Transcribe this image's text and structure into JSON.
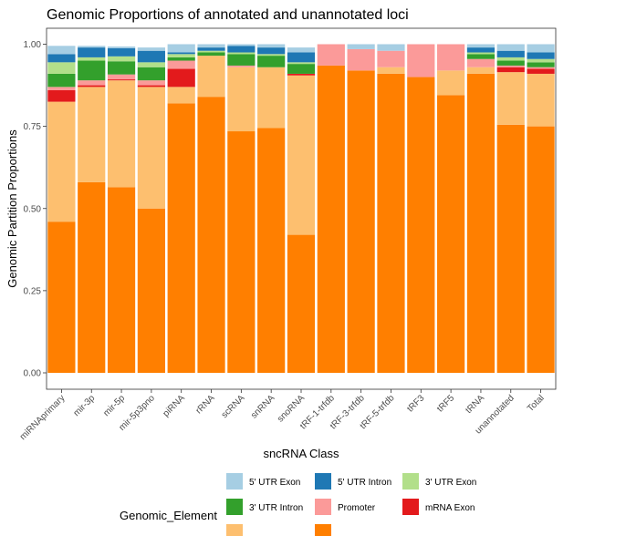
{
  "chart_data": {
    "type": "bar",
    "stacked": true,
    "title": "Genomic Proportions of annotated and unannotated loci",
    "xlabel": "sncRNA Class",
    "ylabel": "Genomic Partition Proportions",
    "ylim": [
      0,
      1
    ],
    "yticks": [
      "0.00",
      "0.25",
      "0.50",
      "0.75",
      "1.00"
    ],
    "grid": false,
    "legend_position": "bottom",
    "legend_title": "Genomic_Element",
    "categories": [
      "miRNAprimary",
      "mir-3p",
      "mir-5p",
      "mir-5p3pno",
      "piRNA",
      "rRNA",
      "scRNA",
      "snRNA",
      "snoRNA",
      "tRF-1-trfdb",
      "tRF-3-trfdb",
      "tRF-5-trfdb",
      "tRF3",
      "tRF5",
      "tRNA",
      "unannotated",
      "Total"
    ],
    "series": [
      {
        "name": "",
        "color": "#FF7F00",
        "values": [
          0.46,
          0.58,
          0.565,
          0.5,
          0.82,
          0.84,
          0.735,
          0.745,
          0.42,
          0.935,
          0.92,
          0.91,
          0.9,
          0.845,
          0.91,
          0.755,
          0.75
        ]
      },
      {
        "name": "",
        "color": "#FDBF6F",
        "values": [
          0.365,
          0.29,
          0.325,
          0.37,
          0.05,
          0.125,
          0.195,
          0.185,
          0.485,
          0.0,
          0.0,
          0.02,
          0.0,
          0.075,
          0.02,
          0.16,
          0.16
        ]
      },
      {
        "name": "mRNA Exon",
        "color": "#E31A1C",
        "values": [
          0.035,
          0.005,
          0.003,
          0.005,
          0.055,
          0.0,
          0.0,
          0.0,
          0.005,
          0.0,
          0.0,
          0.0,
          0.0,
          0.0,
          0.0,
          0.015,
          0.015
        ]
      },
      {
        "name": "Promoter",
        "color": "#FB9A99",
        "values": [
          0.01,
          0.015,
          0.015,
          0.015,
          0.025,
          0.0,
          0.005,
          0.0,
          0.0,
          0.065,
          0.065,
          0.05,
          0.1,
          0.08,
          0.025,
          0.005,
          0.005
        ]
      },
      {
        "name": "3' UTR Intron",
        "color": "#33A02C",
        "values": [
          0.04,
          0.06,
          0.04,
          0.04,
          0.01,
          0.01,
          0.035,
          0.035,
          0.03,
          0.0,
          0.0,
          0.0,
          0.0,
          0.0,
          0.015,
          0.015,
          0.015
        ]
      },
      {
        "name": "3' UTR Exon",
        "color": "#B2DF8A",
        "values": [
          0.035,
          0.01,
          0.015,
          0.015,
          0.01,
          0.005,
          0.005,
          0.005,
          0.005,
          0.0,
          0.0,
          0.0,
          0.0,
          0.0,
          0.005,
          0.01,
          0.01
        ]
      },
      {
        "name": "5' UTR Intron",
        "color": "#1F78B4",
        "values": [
          0.025,
          0.03,
          0.025,
          0.035,
          0.005,
          0.01,
          0.02,
          0.02,
          0.03,
          0.0,
          0.0,
          0.0,
          0.0,
          0.0,
          0.015,
          0.02,
          0.02
        ]
      },
      {
        "name": "5' UTR Exon",
        "color": "#A6CEE3",
        "values": [
          0.025,
          0.005,
          0.005,
          0.01,
          0.025,
          0.01,
          0.005,
          0.01,
          0.015,
          0.0,
          0.015,
          0.02,
          0.0,
          0.0,
          0.01,
          0.02,
          0.025
        ]
      }
    ]
  }
}
